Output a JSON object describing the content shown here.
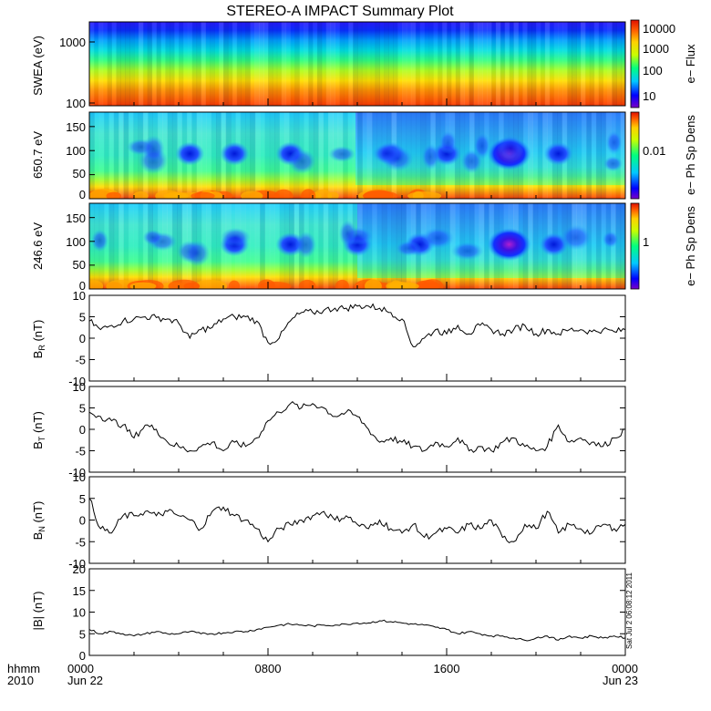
{
  "title": "STEREO-A IMPACT Summary Plot",
  "timestamp": "Sat Jul  2 06:08:12 2011",
  "x_axis": {
    "corner_top": "hhmm",
    "corner_bottom": "2010",
    "ticks": [
      {
        "t": 0,
        "label": "0000",
        "sub": "Jun 22"
      },
      {
        "t": 8,
        "label": "0800",
        "sub": ""
      },
      {
        "t": 16,
        "label": "1600",
        "sub": ""
      },
      {
        "t": 24,
        "label": "0000",
        "sub": "Jun 23"
      }
    ]
  },
  "colors": {
    "frame": "#000000",
    "line": "#000000",
    "spectrum": [
      "#7a00c8",
      "#0000ff",
      "#00c8ff",
      "#00ff80",
      "#c8ff00",
      "#ffd000",
      "#ff6000",
      "#e01000"
    ]
  },
  "panels": {
    "swea": {
      "ylabel": "SWEA (eV)",
      "ticks": [
        "1000",
        "100"
      ],
      "cbar_label": "e− Flux",
      "cbar_ticks": [
        "10000",
        "1000",
        "100",
        "10"
      ]
    },
    "pad650": {
      "ylabel": "650.7 eV",
      "ticks": [
        "150",
        "100",
        "50",
        "0"
      ],
      "cbar_label": "e− Ph Sp Dens",
      "cbar_ticks": [
        "0.01"
      ]
    },
    "pad246": {
      "ylabel": "246.6 eV",
      "ticks": [
        "150",
        "100",
        "50",
        "0"
      ],
      "cbar_label": "e− Ph Sp Dens",
      "cbar_ticks": [
        "1"
      ]
    }
  },
  "chart_data": [
    {
      "type": "heatmap",
      "panel": "swea",
      "ylabel": "SWEA (eV)",
      "y_scale": "log",
      "ylim": [
        100,
        2000
      ],
      "colorbar": {
        "label": "e− Flux",
        "scale": "log",
        "ticks": [
          10,
          100,
          1000,
          10000
        ]
      },
      "profile_by_energy": [
        {
          "energy": 2000,
          "color_level": 0.05
        },
        {
          "energy": 1500,
          "color_level": 0.15
        },
        {
          "energy": 1000,
          "color_level": 0.35
        },
        {
          "energy": 600,
          "color_level": 0.55
        },
        {
          "energy": 300,
          "color_level": 0.75
        },
        {
          "energy": 150,
          "color_level": 0.88
        },
        {
          "energy": 100,
          "color_level": 0.95
        }
      ]
    },
    {
      "type": "heatmap",
      "panel": "pad650",
      "ylabel": "650.7 eV",
      "ylim": [
        0,
        180
      ],
      "yticks": [
        0,
        50,
        100,
        150
      ],
      "colorbar": {
        "label": "e− Ph Sp Dens",
        "ticks": [
          0.01
        ]
      },
      "low_features": [
        {
          "t": 4.5,
          "level": 0.22
        },
        {
          "t": 6.5,
          "level": 0.1
        },
        {
          "t": 9.0,
          "level": 0.2
        },
        {
          "t": 13.5,
          "level": 0.15
        },
        {
          "t": 16.0,
          "level": 0.12
        },
        {
          "t": 18.8,
          "level": 0.03
        },
        {
          "t": 21.0,
          "level": 0.12
        }
      ]
    },
    {
      "type": "heatmap",
      "panel": "pad246",
      "ylabel": "246.6 eV",
      "ylim": [
        0,
        180
      ],
      "yticks": [
        0,
        50,
        100,
        150
      ],
      "colorbar": {
        "label": "e− Ph Sp Dens",
        "ticks": [
          1
        ]
      },
      "low_features": [
        {
          "t": 6.5,
          "level": 0.08
        },
        {
          "t": 9.0,
          "level": 0.2
        },
        {
          "t": 12.0,
          "level": 0.15
        },
        {
          "t": 14.8,
          "level": 0.12
        },
        {
          "t": 18.8,
          "level": 0.03
        },
        {
          "t": 20.8,
          "level": 0.12
        }
      ]
    },
    {
      "type": "line",
      "panel": "br",
      "ylabel": "B_R (nT)",
      "ylim": [
        -10,
        10
      ],
      "yticks": [
        -10,
        -5,
        0,
        5,
        10
      ],
      "xlim": [
        0,
        24
      ],
      "x": [
        0,
        0.5,
        1,
        1.5,
        2,
        2.5,
        3,
        3.5,
        4,
        4.5,
        5,
        5.5,
        6,
        6.5,
        7,
        7.5,
        8,
        8.5,
        9,
        9.5,
        10,
        10.5,
        11,
        11.5,
        12,
        12.5,
        13,
        13.5,
        14,
        14.5,
        15,
        15.5,
        16,
        16.5,
        17,
        17.5,
        18,
        18.5,
        19,
        19.5,
        20,
        20.5,
        21,
        21.5,
        22,
        22.5,
        23,
        23.5,
        24
      ],
      "y": [
        4,
        2,
        3,
        4,
        4.5,
        5,
        4.8,
        4.5,
        3.5,
        0,
        2,
        2.5,
        4.5,
        5,
        5,
        4,
        -1,
        0,
        4,
        6,
        6,
        6.5,
        7,
        7,
        7.5,
        7.5,
        7,
        6,
        4.5,
        -2,
        0,
        2,
        1,
        3,
        1,
        3,
        2,
        1,
        2,
        3,
        1,
        2,
        1,
        2,
        2,
        1.5,
        2,
        1.5,
        2
      ]
    },
    {
      "type": "line",
      "panel": "bt",
      "ylabel": "B_T (nT)",
      "ylim": [
        -10,
        10
      ],
      "yticks": [
        -10,
        -5,
        0,
        5,
        10
      ],
      "xlim": [
        0,
        24
      ],
      "x": [
        0,
        0.5,
        1,
        1.5,
        2,
        2.5,
        3,
        3.5,
        4,
        4.5,
        5,
        5.5,
        6,
        6.5,
        7,
        7.5,
        8,
        8.5,
        9,
        9.5,
        10,
        10.5,
        11,
        11.5,
        12,
        12.5,
        13,
        13.5,
        14,
        14.5,
        15,
        15.5,
        16,
        16.5,
        17,
        17.5,
        18,
        18.5,
        19,
        19.5,
        20,
        20.5,
        21,
        21.5,
        22,
        22.5,
        23,
        23.5,
        24
      ],
      "y": [
        4,
        3,
        2,
        1,
        -2,
        1,
        0,
        -3,
        -4,
        -5,
        -4,
        -3,
        -5,
        -3,
        -4,
        -2,
        2,
        4,
        6,
        5,
        6,
        5,
        3,
        4,
        3,
        0,
        -3,
        -2,
        -3,
        -4,
        -5,
        -3,
        -4,
        -2,
        -5,
        -4,
        -5,
        -3,
        -2,
        -4,
        -5,
        -4,
        1,
        -3,
        -2,
        -3,
        -4,
        -2,
        0
      ]
    },
    {
      "type": "line",
      "panel": "bn",
      "ylabel": "B_N (nT)",
      "ylim": [
        -10,
        10
      ],
      "yticks": [
        -10,
        -5,
        0,
        5,
        10
      ],
      "xlim": [
        0,
        24
      ],
      "x": [
        0,
        0.5,
        1,
        1.5,
        2,
        2.5,
        3,
        3.5,
        4,
        4.5,
        5,
        5.5,
        6,
        6.5,
        7,
        7.5,
        8,
        8.5,
        9,
        9.5,
        10,
        10.5,
        11,
        11.5,
        12,
        12.5,
        13,
        13.5,
        14,
        14.5,
        15,
        15.5,
        16,
        16.5,
        17,
        17.5,
        18,
        18.5,
        19,
        19.5,
        20,
        20.5,
        21,
        21.5,
        22,
        22.5,
        23,
        23.5,
        24
      ],
      "y": [
        5,
        -2,
        -3,
        1,
        1,
        2,
        1,
        2,
        1,
        0,
        -2,
        2,
        3,
        1,
        0,
        -2,
        -5,
        -2,
        -1,
        0,
        1,
        2,
        0,
        1,
        -1,
        -2,
        0,
        -2,
        -3,
        -1,
        -4,
        -3,
        -2,
        -3,
        -1,
        -2,
        0,
        -4,
        -5,
        -1,
        -2,
        2,
        -3,
        -1,
        -2,
        -3,
        -1,
        -2,
        -1
      ]
    },
    {
      "type": "line",
      "panel": "bmag",
      "ylabel": "|B| (nT)",
      "ylim": [
        0,
        20
      ],
      "yticks": [
        0,
        5,
        10,
        15,
        20
      ],
      "xlim": [
        0,
        24
      ],
      "x": [
        0,
        0.5,
        1,
        1.5,
        2,
        2.5,
        3,
        3.5,
        4,
        4.5,
        5,
        5.5,
        6,
        6.5,
        7,
        7.5,
        8,
        8.5,
        9,
        9.5,
        10,
        10.5,
        11,
        11.5,
        12,
        12.5,
        13,
        13.5,
        14,
        14.5,
        15,
        15.5,
        16,
        16.5,
        17,
        17.5,
        18,
        18.5,
        19,
        19.5,
        20,
        20.5,
        21,
        21.5,
        22,
        22.5,
        23,
        23.5,
        24
      ],
      "y": [
        6,
        5,
        5.5,
        5,
        4.5,
        5,
        5.5,
        5,
        5,
        5.5,
        5,
        5,
        5.2,
        5.5,
        5.5,
        6,
        6.5,
        7,
        7.2,
        7,
        6.8,
        7,
        7,
        7.2,
        7.5,
        7.5,
        8,
        7.8,
        7.5,
        7.2,
        7,
        6.5,
        6,
        5,
        5.5,
        5,
        4.5,
        4.5,
        4,
        3.5,
        4,
        4.5,
        3.5,
        4.5,
        4,
        4.5,
        4,
        4.5,
        4
      ]
    }
  ]
}
